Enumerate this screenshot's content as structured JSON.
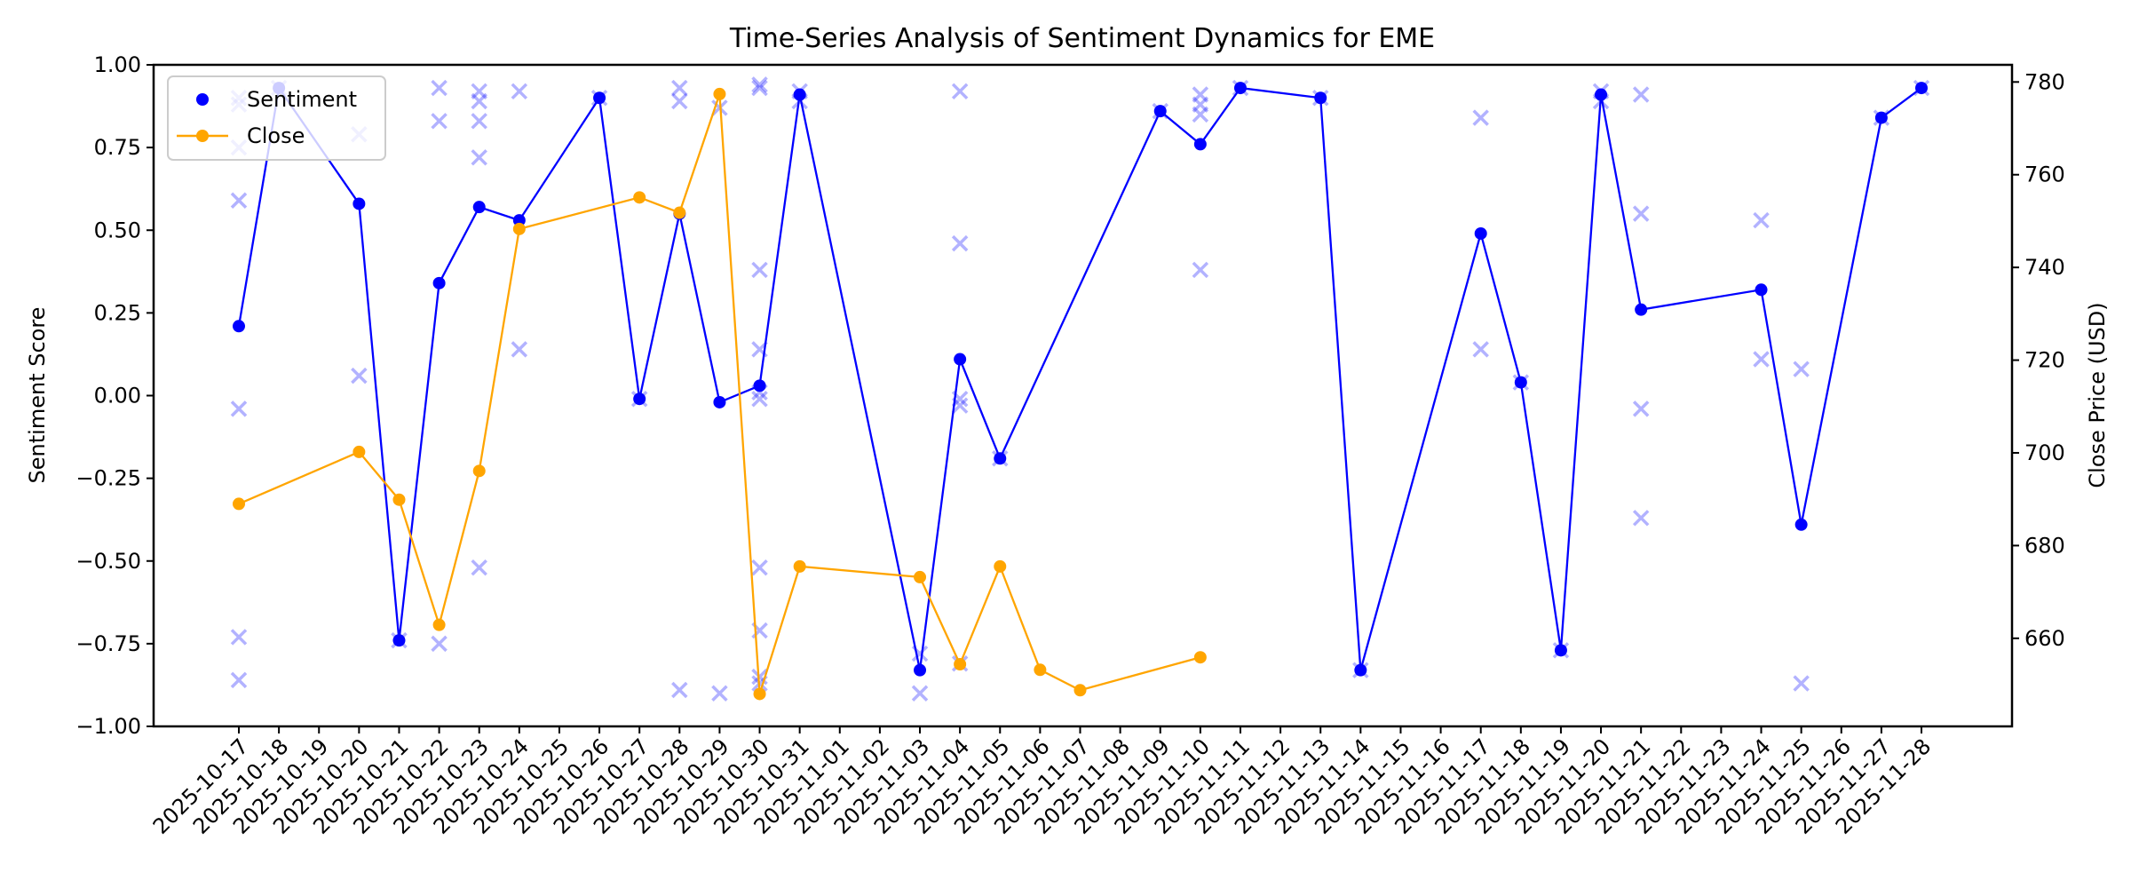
{
  "chart_data": {
    "type": "line",
    "title": "Time-Series Analysis of Sentiment Dynamics for EME",
    "xlabel": "",
    "ylabel": "Sentiment Score",
    "ylabel_right": "Close Price (USD)",
    "ylim": [
      -1.0,
      1.0
    ],
    "ylim_right": [
      641.0,
      783.7
    ],
    "yticks": [
      "1.00",
      "0.75",
      "0.50",
      "0.25",
      "0.00",
      "−0.25",
      "−0.50",
      "−0.75",
      "−1.00"
    ],
    "ytick_values": [
      1.0,
      0.75,
      0.5,
      0.25,
      0.0,
      -0.25,
      -0.5,
      -0.75,
      -1.0
    ],
    "yticks_right": [
      660,
      680,
      700,
      720,
      740,
      760,
      780
    ],
    "grid": false,
    "legend_position": "upper left",
    "categories": [
      "2025-10-17",
      "2025-10-18",
      "2025-10-19",
      "2025-10-20",
      "2025-10-21",
      "2025-10-22",
      "2025-10-23",
      "2025-10-24",
      "2025-10-25",
      "2025-10-26",
      "2025-10-27",
      "2025-10-28",
      "2025-10-29",
      "2025-10-30",
      "2025-10-31",
      "2025-11-01",
      "2025-11-02",
      "2025-11-03",
      "2025-11-04",
      "2025-11-05",
      "2025-11-06",
      "2025-11-07",
      "2025-11-08",
      "2025-11-09",
      "2025-11-10",
      "2025-11-11",
      "2025-11-12",
      "2025-11-13",
      "2025-11-14",
      "2025-11-15",
      "2025-11-16",
      "2025-11-17",
      "2025-11-18",
      "2025-11-19",
      "2025-11-20",
      "2025-11-21",
      "2025-11-22",
      "2025-11-23",
      "2025-11-24",
      "2025-11-25",
      "2025-11-26",
      "2025-11-27",
      "2025-11-28"
    ],
    "series": [
      {
        "name": "Sentiment",
        "axis": "left",
        "color": "#0000ff",
        "points": [
          [
            "2025-10-17",
            0.21
          ],
          [
            "2025-10-18",
            0.93
          ],
          [
            "2025-10-20",
            0.58
          ],
          [
            "2025-10-21",
            -0.74
          ],
          [
            "2025-10-22",
            0.34
          ],
          [
            "2025-10-23",
            0.57
          ],
          [
            "2025-10-24",
            0.53
          ],
          [
            "2025-10-26",
            0.9
          ],
          [
            "2025-10-27",
            -0.01
          ],
          [
            "2025-10-28",
            0.55
          ],
          [
            "2025-10-29",
            -0.02
          ],
          [
            "2025-10-30",
            0.03
          ],
          [
            "2025-10-31",
            0.91
          ],
          [
            "2025-11-03",
            -0.83
          ],
          [
            "2025-11-04",
            0.11
          ],
          [
            "2025-11-05",
            -0.19
          ],
          [
            "2025-11-09",
            0.86
          ],
          [
            "2025-11-10",
            0.76
          ],
          [
            "2025-11-11",
            0.93
          ],
          [
            "2025-11-13",
            0.9
          ],
          [
            "2025-11-14",
            -0.83
          ],
          [
            "2025-11-17",
            0.49
          ],
          [
            "2025-11-18",
            0.04
          ],
          [
            "2025-11-19",
            -0.77
          ],
          [
            "2025-11-20",
            0.91
          ],
          [
            "2025-11-21",
            0.26
          ],
          [
            "2025-11-24",
            0.32
          ],
          [
            "2025-11-25",
            -0.39
          ],
          [
            "2025-11-27",
            0.84
          ],
          [
            "2025-11-28",
            0.93
          ]
        ]
      },
      {
        "name": "Close",
        "axis": "right",
        "color": "#ffa500",
        "points": [
          [
            "2025-10-17",
            689.0
          ],
          [
            "2025-10-20",
            700.2
          ],
          [
            "2025-10-21",
            689.9
          ],
          [
            "2025-10-22",
            662.9
          ],
          [
            "2025-10-23",
            696.1
          ],
          [
            "2025-10-24",
            748.3
          ],
          [
            "2025-10-27",
            755.1
          ],
          [
            "2025-10-28",
            751.8
          ],
          [
            "2025-10-29",
            777.4
          ],
          [
            "2025-10-30",
            648.0
          ],
          [
            "2025-10-31",
            675.5
          ],
          [
            "2025-11-03",
            673.2
          ],
          [
            "2025-11-04",
            654.4
          ],
          [
            "2025-11-05",
            675.5
          ],
          [
            "2025-11-06",
            653.2
          ],
          [
            "2025-11-07",
            648.8
          ],
          [
            "2025-11-10",
            655.9
          ]
        ]
      },
      {
        "name": "Individual sentiment (x markers)",
        "axis": "left",
        "color": "#0000ff",
        "alpha": 0.3,
        "points": [
          [
            "2025-10-17",
            0.9
          ],
          [
            "2025-10-17",
            0.88
          ],
          [
            "2025-10-17",
            0.75
          ],
          [
            "2025-10-17",
            0.59
          ],
          [
            "2025-10-17",
            -0.04
          ],
          [
            "2025-10-17",
            -0.73
          ],
          [
            "2025-10-17",
            -0.86
          ],
          [
            "2025-10-18",
            0.93
          ],
          [
            "2025-10-20",
            0.79
          ],
          [
            "2025-10-20",
            0.06
          ],
          [
            "2025-10-21",
            -0.74
          ],
          [
            "2025-10-22",
            0.93
          ],
          [
            "2025-10-22",
            0.83
          ],
          [
            "2025-10-22",
            -0.75
          ],
          [
            "2025-10-23",
            0.92
          ],
          [
            "2025-10-23",
            0.89
          ],
          [
            "2025-10-23",
            0.83
          ],
          [
            "2025-10-23",
            0.72
          ],
          [
            "2025-10-23",
            -0.52
          ],
          [
            "2025-10-24",
            0.92
          ],
          [
            "2025-10-24",
            0.14
          ],
          [
            "2025-10-26",
            0.9
          ],
          [
            "2025-10-27",
            -0.01
          ],
          [
            "2025-10-28",
            0.93
          ],
          [
            "2025-10-28",
            0.89
          ],
          [
            "2025-10-28",
            -0.89
          ],
          [
            "2025-10-29",
            0.87
          ],
          [
            "2025-10-29",
            -0.9
          ],
          [
            "2025-10-30",
            0.94
          ],
          [
            "2025-10-30",
            0.93
          ],
          [
            "2025-10-30",
            0.38
          ],
          [
            "2025-10-30",
            0.14
          ],
          [
            "2025-10-30",
            0.01
          ],
          [
            "2025-10-30",
            -0.01
          ],
          [
            "2025-10-30",
            -0.52
          ],
          [
            "2025-10-30",
            -0.71
          ],
          [
            "2025-10-30",
            -0.85
          ],
          [
            "2025-10-30",
            -0.87
          ],
          [
            "2025-10-31",
            0.92
          ],
          [
            "2025-10-31",
            0.89
          ],
          [
            "2025-11-03",
            -0.78
          ],
          [
            "2025-11-03",
            -0.9
          ],
          [
            "2025-11-04",
            0.92
          ],
          [
            "2025-11-04",
            0.46
          ],
          [
            "2025-11-04",
            -0.01
          ],
          [
            "2025-11-04",
            -0.03
          ],
          [
            "2025-11-04",
            -0.81
          ],
          [
            "2025-11-05",
            -0.19
          ],
          [
            "2025-11-09",
            0.86
          ],
          [
            "2025-11-10",
            0.91
          ],
          [
            "2025-11-10",
            0.88
          ],
          [
            "2025-11-10",
            0.85
          ],
          [
            "2025-11-10",
            0.38
          ],
          [
            "2025-11-11",
            0.93
          ],
          [
            "2025-11-13",
            0.9
          ],
          [
            "2025-11-14",
            -0.83
          ],
          [
            "2025-11-17",
            0.84
          ],
          [
            "2025-11-17",
            0.14
          ],
          [
            "2025-11-18",
            0.04
          ],
          [
            "2025-11-19",
            -0.77
          ],
          [
            "2025-11-20",
            0.92
          ],
          [
            "2025-11-20",
            0.89
          ],
          [
            "2025-11-21",
            0.91
          ],
          [
            "2025-11-21",
            0.55
          ],
          [
            "2025-11-21",
            -0.04
          ],
          [
            "2025-11-21",
            -0.37
          ],
          [
            "2025-11-24",
            0.53
          ],
          [
            "2025-11-24",
            0.11
          ],
          [
            "2025-11-25",
            0.08
          ],
          [
            "2025-11-25",
            -0.87
          ],
          [
            "2025-11-27",
            0.84
          ],
          [
            "2025-11-28",
            0.93
          ]
        ]
      }
    ]
  },
  "legend": {
    "items": [
      {
        "label": "Sentiment",
        "color": "#0000ff",
        "style": "marker"
      },
      {
        "label": "Close",
        "color": "#ffa500",
        "style": "line-marker"
      }
    ]
  },
  "colors": {
    "sentiment": "#0000ff",
    "close": "#ffa500",
    "scatter": "#0000ff",
    "axis": "#000000"
  }
}
